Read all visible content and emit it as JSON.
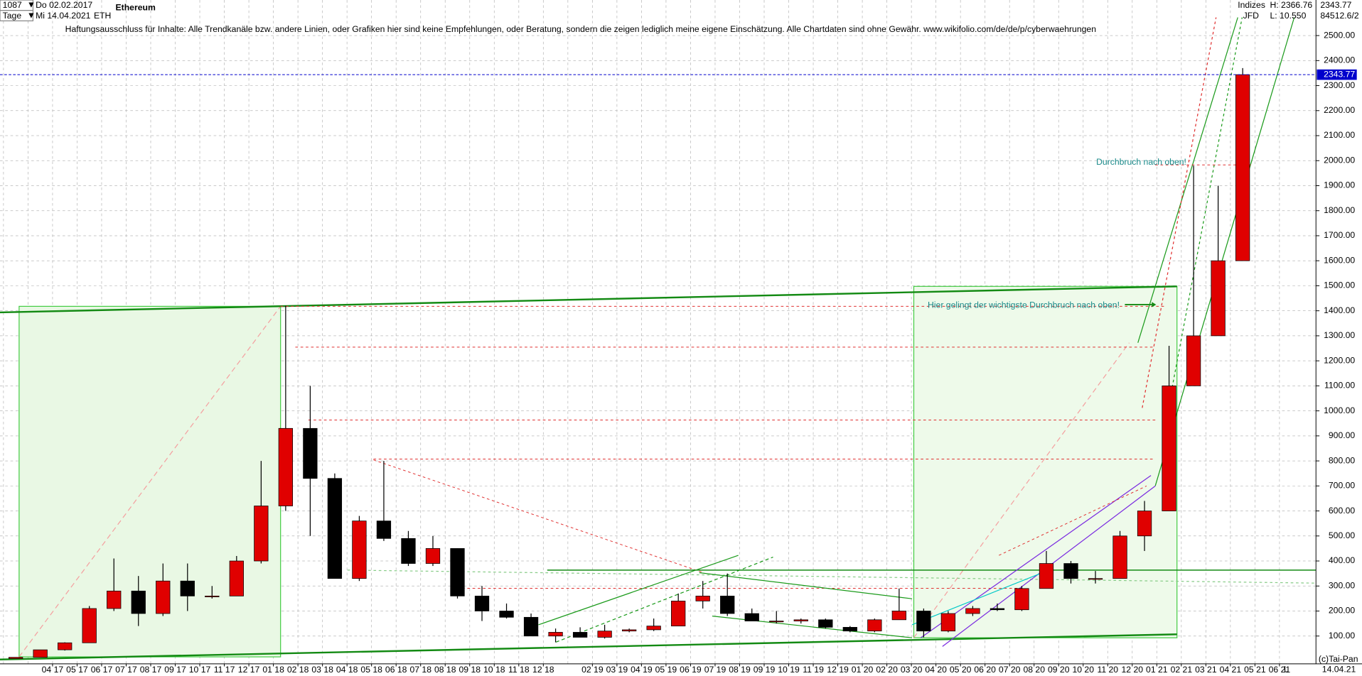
{
  "header": {
    "count": "1087",
    "start_date": "Do 02.02.2017",
    "period": "Tage",
    "end_date": "Mi 14.04.2021",
    "symbol": "ETH",
    "source": "Indizes",
    "broker": "JFD",
    "high": "H: 2366.76",
    "low": "L: 10.550",
    "volume": "84512.6/2"
  },
  "disclaimer": "Haftungsausschluss für Inhalte: Alle Trendkanäle bzw. andere Linien, oder Grafiken hier sind keine Empfehlungen, oder Beratung, sondern die zeigen lediglich meine eigene Einschätzung. Alle Chartdaten sind ohne Gewähr.  www.wikifolio.com/de/de/p/cyberwaehrungen",
  "footer": {
    "copyright": "(c)Tai-Pan",
    "date": "14.04.21",
    "scale": "L"
  },
  "chart_data": {
    "type": "candlestick",
    "title": "Ethereum",
    "annotations": [
      "Durchbruch nach oben!",
      "Hier gelingt der wichtigste Durchbruch nach oben!"
    ],
    "categories": [
      null,
      null,
      "04 17",
      "05 17",
      "06 17",
      "07 17",
      "08 17",
      "09 17",
      "10 17",
      "11 17",
      "12 17",
      "01 18",
      "02 18",
      "03 18",
      "04 18",
      "05 18",
      "06 18",
      "07 18",
      "08 18",
      "09 18",
      "10 18",
      "11 18",
      "12 18",
      null,
      "02 19",
      "03 19",
      "04 19",
      "05 19",
      "06 19",
      "07 19",
      "08 19",
      "09 19",
      "10 19",
      "11 19",
      "12 19",
      "01 20",
      "02 20",
      "03 20",
      "04 20",
      "05 20",
      "06 20",
      "07 20",
      "08 20",
      "09 20",
      "10 20",
      "11 20",
      "12 20",
      "01 21",
      "02 21",
      "03 21",
      "04 21",
      "05 21",
      "06 21"
    ],
    "open": [
      10,
      15,
      45,
      73,
      210,
      280,
      190,
      320,
      260,
      260,
      400,
      620,
      930,
      730,
      330,
      560,
      490,
      390,
      450,
      260,
      200,
      175,
      100,
      115,
      95,
      120,
      125,
      140,
      240,
      260,
      190,
      160,
      160,
      165,
      135,
      120,
      165,
      200,
      120,
      190,
      210,
      205,
      290,
      390,
      330,
      330,
      500,
      600,
      1100,
      1300,
      1600,
      null,
      null
    ],
    "high": [
      15,
      45,
      75,
      220,
      410,
      340,
      390,
      390,
      300,
      420,
      800,
      1420,
      1100,
      750,
      580,
      800,
      520,
      500,
      450,
      300,
      230,
      190,
      130,
      135,
      145,
      130,
      170,
      270,
      320,
      350,
      210,
      200,
      170,
      170,
      140,
      170,
      290,
      210,
      200,
      220,
      230,
      300,
      440,
      400,
      360,
      520,
      640,
      1260,
      1980,
      1900,
      2370,
      null,
      null
    ],
    "low": [
      10,
      15,
      42,
      73,
      200,
      140,
      180,
      200,
      250,
      260,
      390,
      600,
      500,
      330,
      320,
      480,
      380,
      380,
      250,
      160,
      170,
      100,
      75,
      95,
      90,
      115,
      120,
      140,
      210,
      180,
      160,
      150,
      150,
      130,
      115,
      115,
      165,
      95,
      115,
      180,
      200,
      200,
      290,
      310,
      310,
      330,
      440,
      600,
      1100,
      1300,
      1600,
      null,
      null
    ],
    "close": [
      15,
      45,
      73,
      210,
      280,
      190,
      320,
      260,
      260,
      400,
      620,
      930,
      730,
      330,
      560,
      490,
      390,
      450,
      260,
      200,
      175,
      100,
      115,
      95,
      120,
      125,
      140,
      240,
      260,
      190,
      160,
      160,
      165,
      135,
      120,
      165,
      200,
      120,
      190,
      210,
      205,
      290,
      390,
      330,
      330,
      500,
      600,
      1100,
      1300,
      1600,
      2343.77,
      null,
      null
    ],
    "up_color": "#e00000",
    "down_color": "#000000",
    "last_price": 2343.77,
    "last_price_color": "#0000cc",
    "ylim": [
      -11,
      2642
    ],
    "yticks": [
      {
        "value": 100,
        "label": "100.00"
      },
      {
        "value": 200,
        "label": "200.00"
      },
      {
        "value": 300,
        "label": "300.00"
      },
      {
        "value": 400,
        "label": "400.00"
      },
      {
        "value": 500,
        "label": "500.00"
      },
      {
        "value": 600,
        "label": "600.00"
      },
      {
        "value": 700,
        "label": "700.00"
      },
      {
        "value": 800,
        "label": "800.00"
      },
      {
        "value": 900,
        "label": "900.00"
      },
      {
        "value": 1000,
        "label": "1000.00"
      },
      {
        "value": 1100,
        "label": "1100.00"
      },
      {
        "value": 1200,
        "label": "1200.00"
      },
      {
        "value": 1300,
        "label": "1300.00"
      },
      {
        "value": 1400,
        "label": "1400.00"
      },
      {
        "value": 1500,
        "label": "1500.00"
      },
      {
        "value": 1600,
        "label": "1600.00"
      },
      {
        "value": 1700,
        "label": "1700.00"
      },
      {
        "value": 1800,
        "label": "1800.00"
      },
      {
        "value": 1900,
        "label": "1900.00"
      },
      {
        "value": 2000,
        "label": "2000.00"
      },
      {
        "value": 2100,
        "label": "2100.00"
      },
      {
        "value": 2200,
        "label": "2200.00"
      },
      {
        "value": 2300,
        "label": "2300.00"
      },
      {
        "value": 2400,
        "label": "2400.00"
      },
      {
        "value": 2500,
        "label": "2500.00"
      }
    ],
    "grid": true
  }
}
